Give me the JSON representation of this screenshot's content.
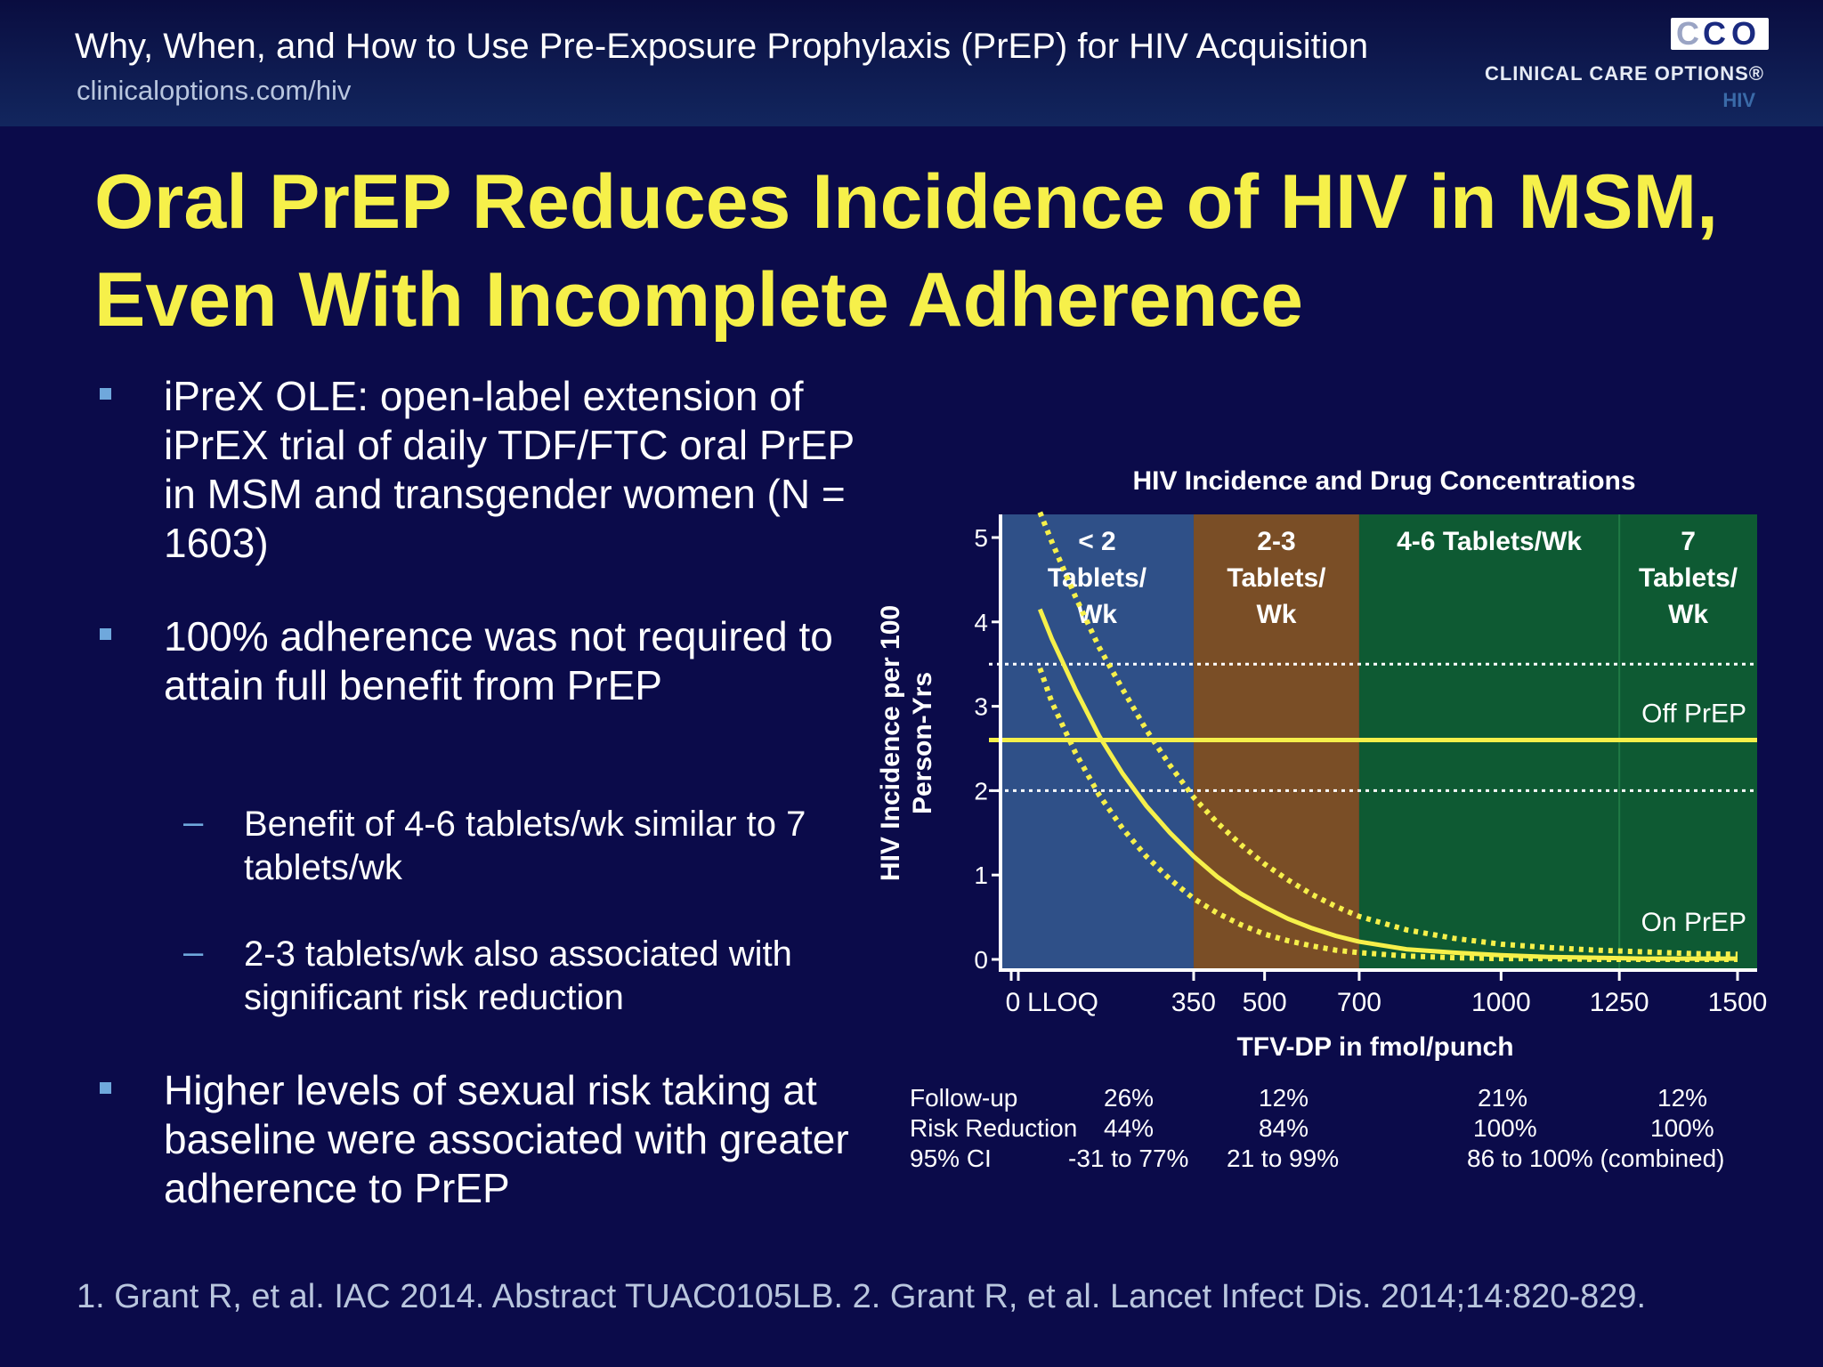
{
  "header": {
    "title": "Why, When, and How to Use Pre-Exposure Prophylaxis (PrEP) for HIV Acquisition",
    "url": "clinicaloptions.com/hiv",
    "logo_text": "CLINICAL CARE OPTIONS®",
    "logo_sub": "HIV",
    "logo_letters": [
      "C",
      "C",
      "O"
    ]
  },
  "slide_title": "Oral PrEP Reduces Incidence of HIV in MSM, Even With Incomplete Adherence",
  "bullets": [
    {
      "text": "iPreX OLE: open-label extension of iPrEX trial of daily TDF/FTC oral PrEP in MSM and transgender women (N = 1603)"
    },
    {
      "text": "100% adherence was not required to attain full benefit from PrEP"
    },
    {
      "text": "Higher levels of sexual risk taking at baseline were associated with greater adherence to PrEP"
    }
  ],
  "sub_bullets": [
    {
      "text": "Benefit of 4-6 tablets/wk similar to 7 tablets/wk"
    },
    {
      "text": "2-3 tablets/wk also associated with significant risk reduction"
    }
  ],
  "footer": "1. Grant R, et al. IAC 2014. Abstract TUAC0105LB. 2. Grant R, et al. Lancet Infect Dis. 2014;14:820-829.",
  "colors": {
    "background": "#0b0b4a",
    "title": "#f6f04a",
    "curve": "#f6f04a",
    "band_lt2": "#2f5088",
    "band_2_3": "#7a4e26",
    "band_4_6": "#0e5a33",
    "band_7": "#0e5a33",
    "bullet": "#6fa8dc"
  },
  "chart_data": {
    "type": "line",
    "title": "HIV Incidence and Drug Concentrations",
    "xlabel": "TFV-DP in fmol/punch",
    "ylabel": "HIV Incidence per 100 Person-Yrs",
    "xlim": [
      0,
      1500
    ],
    "ylim": [
      0,
      5
    ],
    "x_ticks": [
      350,
      500,
      700,
      1000,
      1250,
      1500
    ],
    "x_tick_labels": [
      "350",
      "500",
      "700",
      "1000",
      "1250",
      "1500"
    ],
    "x_special_labels": [
      "0",
      "LLOQ"
    ],
    "y_ticks": [
      0,
      1,
      2,
      3,
      4,
      5
    ],
    "bands": [
      {
        "label": "< 2 Tablets/ Wk",
        "x_start": 0,
        "x_end": 350
      },
      {
        "label": "2-3 Tablets/ Wk",
        "x_start": 350,
        "x_end": 700
      },
      {
        "label": "4-6 Tablets/Wk",
        "x_start": 700,
        "x_end": 1250
      },
      {
        "label": "7 Tablets/ Wk",
        "x_start": 1250,
        "x_end": 1500
      }
    ],
    "reference_lines": [
      {
        "name": "Off PrEP",
        "y": 2.6,
        "ci_low": 2.0,
        "ci_high": 3.5
      }
    ],
    "series": [
      {
        "name": "On PrEP",
        "x": [
          25,
          50,
          100,
          150,
          200,
          250,
          300,
          350,
          400,
          450,
          500,
          550,
          600,
          650,
          700,
          800,
          900,
          1000,
          1100,
          1200,
          1300,
          1400,
          1500
        ],
        "y": [
          4.15,
          3.8,
          3.2,
          2.65,
          2.2,
          1.82,
          1.5,
          1.22,
          0.98,
          0.78,
          0.62,
          0.48,
          0.37,
          0.28,
          0.21,
          0.12,
          0.08,
          0.05,
          0.03,
          0.02,
          0.01,
          0.01,
          0.01
        ],
        "upper": [
          5.3,
          4.95,
          4.3,
          3.7,
          3.2,
          2.72,
          2.3,
          1.92,
          1.62,
          1.36,
          1.13,
          0.94,
          0.77,
          0.63,
          0.51,
          0.35,
          0.25,
          0.18,
          0.14,
          0.11,
          0.09,
          0.07,
          0.06
        ],
        "lower": [
          3.45,
          3.05,
          2.45,
          1.95,
          1.55,
          1.22,
          0.95,
          0.72,
          0.55,
          0.41,
          0.3,
          0.22,
          0.16,
          0.11,
          0.08,
          0.04,
          0.02,
          0.01,
          0.01,
          0.0,
          0.0,
          0.0,
          0.0
        ]
      }
    ],
    "table": {
      "row_labels": [
        "Follow-up",
        "Risk Reduction",
        "95% CI"
      ],
      "columns": [
        {
          "band": "< 2 Tablets/ Wk",
          "values": [
            "26%",
            "44%",
            "-31 to 77%"
          ]
        },
        {
          "band": "2-3 Tablets/ Wk",
          "values": [
            "12%",
            "84%",
            "21 to 99%"
          ]
        },
        {
          "band": "4-6 Tablets/Wk",
          "values": [
            "21%",
            "100%",
            "86 to 100% (combined)"
          ]
        },
        {
          "band": "7 Tablets/ Wk",
          "values": [
            "12%",
            "100%",
            ""
          ]
        }
      ]
    }
  }
}
